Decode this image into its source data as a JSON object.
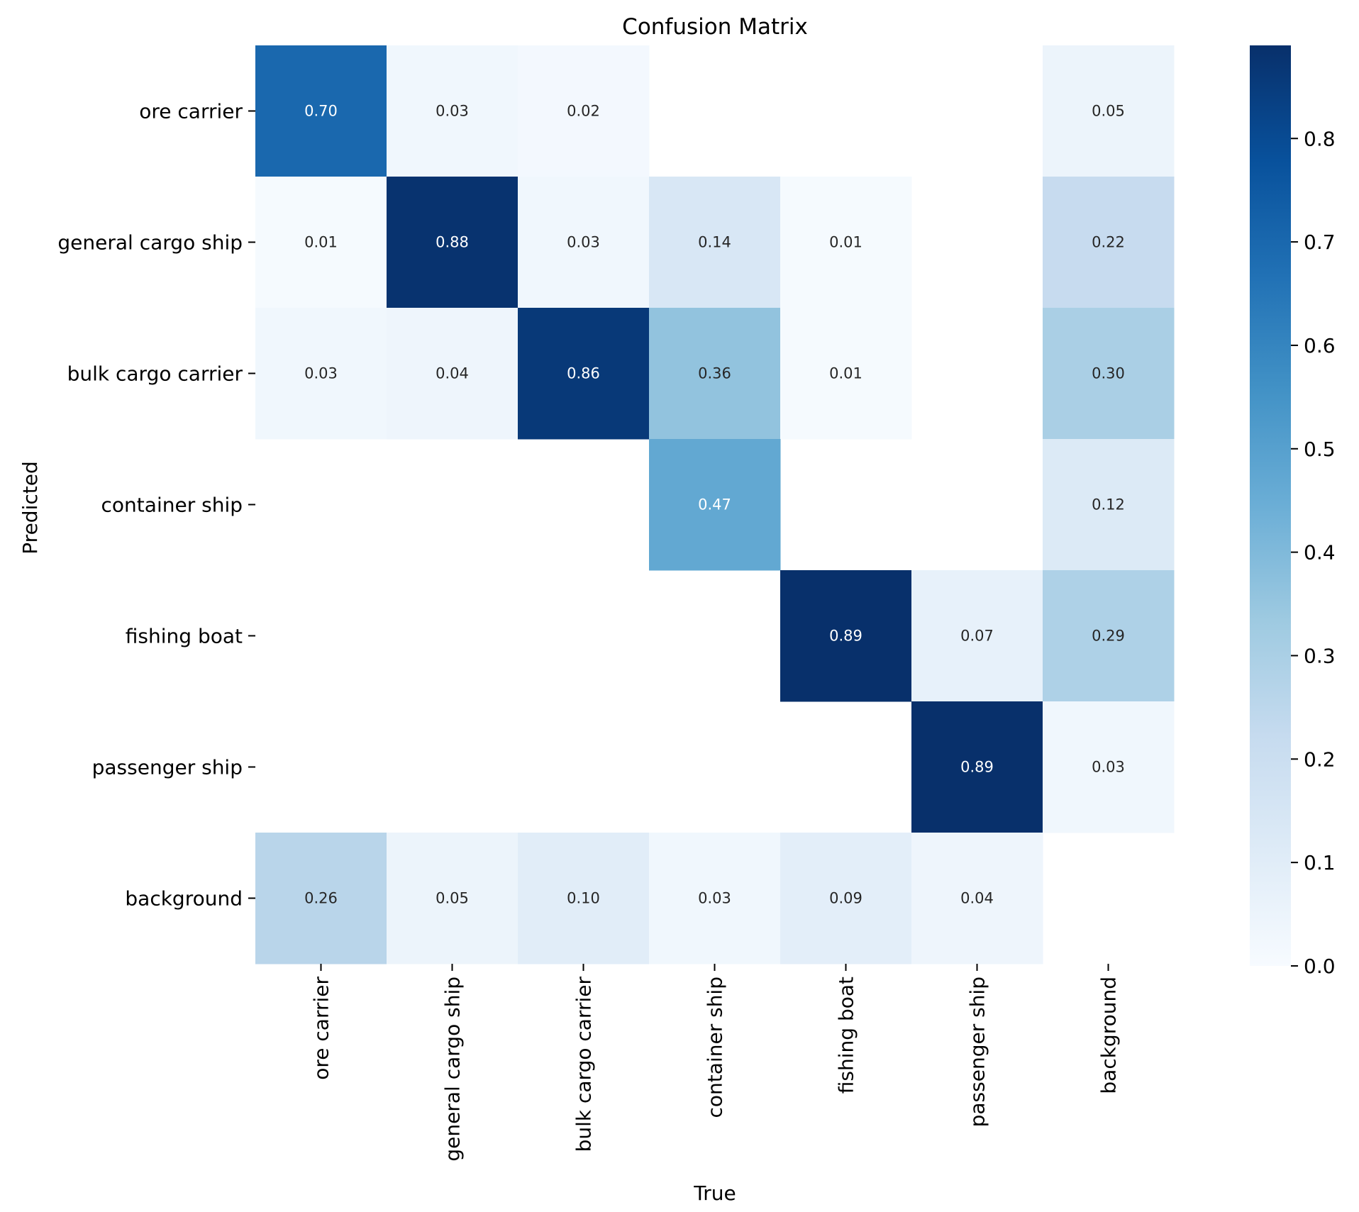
{
  "chart_data": {
    "type": "heatmap",
    "title": "Confusion Matrix",
    "xlabel": "True",
    "ylabel": "Predicted",
    "x_categories": [
      "ore carrier",
      "general cargo ship",
      "bulk cargo carrier",
      "container ship",
      "fishing boat",
      "passenger ship",
      "background"
    ],
    "y_categories": [
      "ore carrier",
      "general cargo ship",
      "bulk cargo carrier",
      "container ship",
      "fishing boat",
      "passenger ship",
      "background"
    ],
    "values": [
      [
        0.7,
        0.03,
        0.02,
        null,
        null,
        null,
        0.05
      ],
      [
        0.01,
        0.88,
        0.03,
        0.14,
        0.01,
        null,
        0.22
      ],
      [
        0.03,
        0.04,
        0.86,
        0.36,
        0.01,
        null,
        0.3
      ],
      [
        null,
        null,
        null,
        0.47,
        null,
        null,
        0.12
      ],
      [
        null,
        null,
        null,
        null,
        0.89,
        0.07,
        0.29
      ],
      [
        null,
        null,
        null,
        null,
        null,
        0.89,
        0.03
      ],
      [
        0.26,
        0.05,
        0.1,
        0.03,
        0.09,
        0.04,
        null
      ]
    ],
    "colorbar": {
      "vmin": 0.0,
      "vmax": 0.89,
      "ticks": [
        0.0,
        0.1,
        0.2,
        0.3,
        0.4,
        0.5,
        0.6,
        0.7,
        0.8
      ],
      "tick_labels": [
        "0.0",
        "0.1",
        "0.2",
        "0.3",
        "0.4",
        "0.5",
        "0.6",
        "0.7",
        "0.8"
      ],
      "colormap": "Blues"
    }
  }
}
